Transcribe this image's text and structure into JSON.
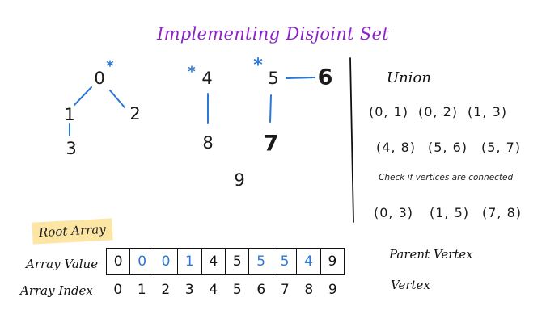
{
  "title": "Implementing Disjoint Set",
  "graph": {
    "nodes": {
      "n0": "0",
      "n1": "1",
      "n2": "2",
      "n3": "3",
      "n4": "4",
      "n8": "8",
      "n5": "5",
      "n6": "6",
      "n7": "7",
      "n9": "9"
    },
    "root_marker": "*"
  },
  "union": {
    "heading": "Union",
    "pairs_row1": [
      "(0, 1)",
      "(0, 2)",
      "(1, 3)"
    ],
    "pairs_row2": [
      "(4, 8)",
      "(5, 6)",
      "(5, 7)"
    ]
  },
  "check": {
    "note": "Check if vertices are connected",
    "pairs": [
      "(0, 3)",
      "(1, 5)",
      "(7, 8)"
    ]
  },
  "root_array": {
    "label": "Root Array",
    "value_label": "Array Value",
    "index_label": "Array Index",
    "values": [
      "0",
      "0",
      "0",
      "1",
      "4",
      "5",
      "5",
      "5",
      "4",
      "9"
    ],
    "indices": [
      "0",
      "1",
      "2",
      "3",
      "4",
      "5",
      "6",
      "7",
      "8",
      "9"
    ],
    "changed_indices": [
      1,
      2,
      3,
      6,
      7,
      8
    ],
    "value_side_label": "Parent Vertex",
    "index_side_label": "Vertex"
  },
  "colors": {
    "title": "#8a24c9",
    "accent": "#2b78d6",
    "highlight": "#fde6a4",
    "ink": "#111111"
  }
}
